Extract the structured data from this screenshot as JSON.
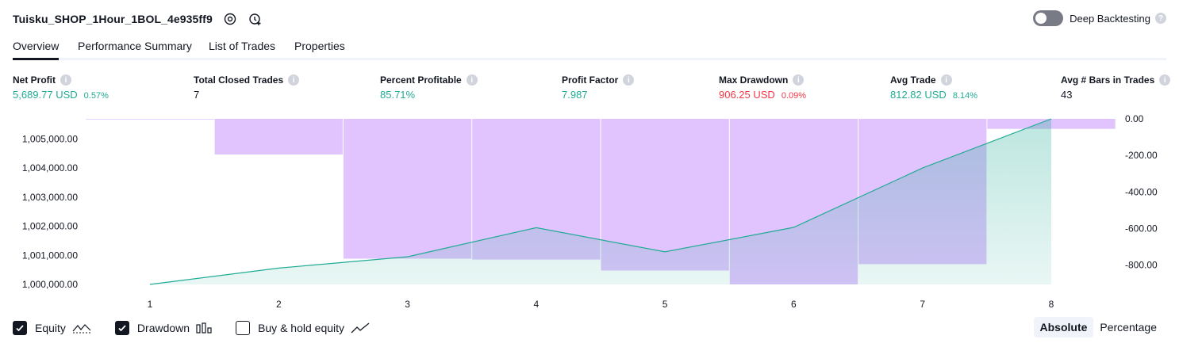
{
  "header": {
    "strategy_name": "Tuisku_SHOP_1Hour_1BOL_4e935ff9",
    "deep_backtesting_label": "Deep Backtesting",
    "icons": [
      "settings-icon",
      "add-alert-icon",
      "help-icon"
    ]
  },
  "tabs": [
    {
      "label": "Overview",
      "active": true
    },
    {
      "label": "Performance Summary",
      "active": false
    },
    {
      "label": "List of Trades",
      "active": false
    },
    {
      "label": "Properties",
      "active": false
    }
  ],
  "metrics": [
    {
      "label": "Net Profit",
      "value": "5,689.77 USD",
      "sub": "0.57%",
      "tone": "green"
    },
    {
      "label": "Total Closed Trades",
      "value": "7",
      "sub": "",
      "tone": "dark"
    },
    {
      "label": "Percent Profitable",
      "value": "85.71%",
      "sub": "",
      "tone": "green"
    },
    {
      "label": "Profit Factor",
      "value": "7.987",
      "sub": "",
      "tone": "green"
    },
    {
      "label": "Max Drawdown",
      "value": "906.25 USD",
      "sub": "0.09%",
      "tone": "red"
    },
    {
      "label": "Avg Trade",
      "value": "812.82 USD",
      "sub": "8.14%",
      "tone": "green"
    },
    {
      "label": "Avg # Bars in Trades",
      "value": "43",
      "sub": "",
      "tone": "dark"
    }
  ],
  "chart_data": {
    "type": "line",
    "x": [
      "1",
      "2",
      "3",
      "4",
      "5",
      "6",
      "7",
      "8"
    ],
    "series": [
      {
        "name": "Equity",
        "type": "area",
        "axis": "left",
        "color": "#22ab94",
        "values": [
          1000000,
          1000560,
          1000950,
          1001950,
          1001120,
          1001960,
          1004000,
          1005690
        ]
      },
      {
        "name": "Drawdown",
        "type": "bar",
        "axis": "right",
        "color": "#e1c4fe",
        "values": [
          0,
          -195,
          -765,
          -770,
          -830,
          -906,
          -795,
          -55
        ]
      }
    ],
    "left_ticks": [
      "1,000,000.00",
      "1,001,000.00",
      "1,002,000.00",
      "1,003,000.00",
      "1,004,000.00",
      "1,005,000.00"
    ],
    "left_tick_values": [
      1000000,
      1001000,
      1002000,
      1003000,
      1004000,
      1005000
    ],
    "right_ticks": [
      "0.00",
      "-200.00",
      "-400.00",
      "-600.00",
      "-800.00"
    ],
    "right_tick_values": [
      0,
      -200,
      -400,
      -600,
      -800
    ],
    "left_range": [
      1000000,
      1005690
    ],
    "right_range": [
      -906,
      0
    ]
  },
  "footer": {
    "checks": [
      {
        "label": "Equity",
        "checked": true,
        "icon": "equity-line-icon"
      },
      {
        "label": "Drawdown",
        "checked": true,
        "icon": "drawdown-bars-icon"
      },
      {
        "label": "Buy & hold equity",
        "checked": false,
        "icon": "buy-hold-line-icon"
      }
    ],
    "modes": [
      {
        "label": "Absolute",
        "active": true
      },
      {
        "label": "Percentage",
        "active": false
      }
    ]
  }
}
